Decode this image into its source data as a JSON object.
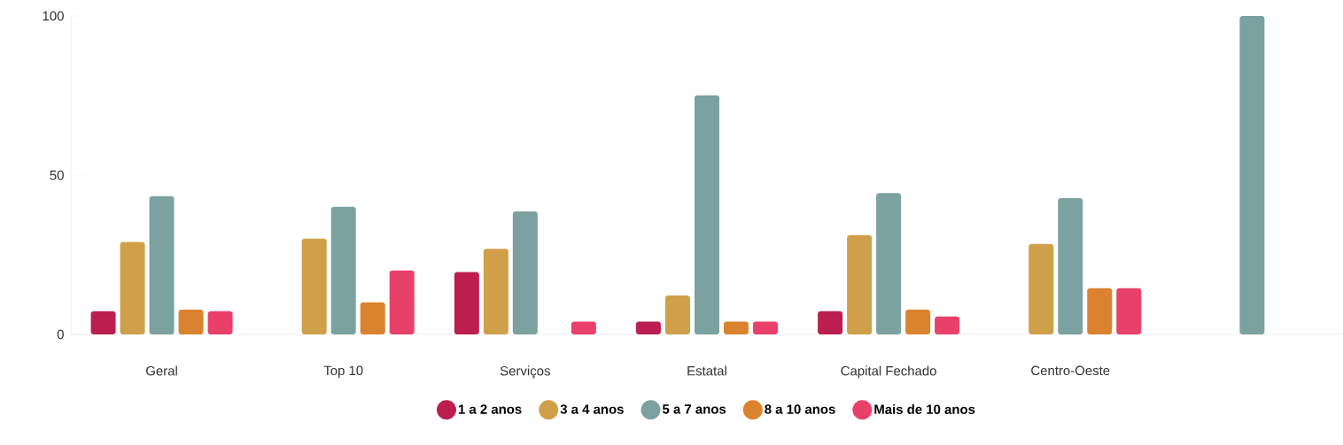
{
  "chart_data": {
    "type": "bar",
    "categories": [
      "Geral",
      "Top 10",
      "Serviços",
      "Estatal",
      "Capital Fechado",
      "Centro-Oeste",
      null
    ],
    "series": [
      {
        "name": "1 a 2 anos",
        "color": "#bc1f4f",
        "values": [
          7.3,
          null,
          19.6,
          4,
          7.3,
          null,
          null
        ]
      },
      {
        "name": "3 a 4 anos",
        "color": "#cfa049",
        "values": [
          29,
          30.1,
          26.9,
          12.2,
          31.2,
          28.4,
          null
        ]
      },
      {
        "name": "5 a 7 anos",
        "color": "#7ba1a1",
        "values": [
          43.4,
          40.1,
          38.6,
          75.1,
          44.4,
          42.8,
          100
        ]
      },
      {
        "name": "8 a 10 anos",
        "color": "#db822e",
        "values": [
          7.8,
          10.1,
          null,
          4,
          7.8,
          14.5,
          null
        ]
      },
      {
        "name": "Mais de 10 anos",
        "color": "#e9406a",
        "values": [
          7.3,
          20.1,
          4,
          4,
          5.6,
          14.5,
          null
        ]
      }
    ],
    "ylim": [
      0,
      100
    ],
    "yticks": [
      0,
      50,
      100
    ],
    "grid": false,
    "legend": "bottom"
  }
}
